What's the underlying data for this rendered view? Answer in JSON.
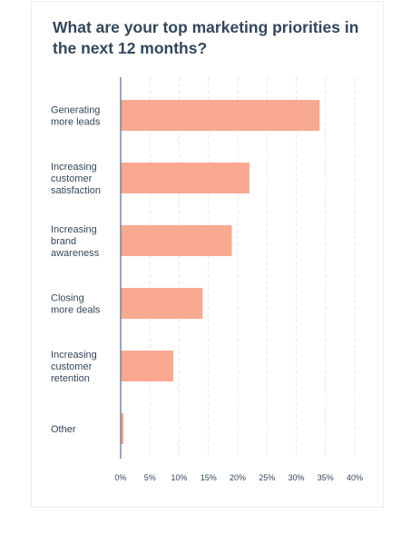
{
  "chart_data": {
    "type": "bar",
    "orientation": "horizontal",
    "title": "What are your top marketing priorities in the next 12 months?",
    "categories": [
      [
        "Generating",
        "more leads"
      ],
      [
        "Increasing",
        "customer",
        "satisfaction"
      ],
      [
        "Increasing",
        "brand",
        "awareness"
      ],
      [
        "Closing",
        "more deals"
      ],
      [
        "Increasing",
        "customer",
        "retention"
      ],
      [
        "Other"
      ]
    ],
    "values": [
      34,
      22,
      19,
      14,
      9,
      0.5
    ],
    "xlim": [
      0,
      40
    ],
    "ticks": [
      "0%",
      "5%",
      "10%",
      "15%",
      "20%",
      "25%",
      "30%",
      "35%",
      "40%"
    ],
    "grid": true,
    "colors": {
      "bar": "#f8a990",
      "axis": "#516f90",
      "grid": "#e3e8ee",
      "text": "#33475b"
    }
  }
}
